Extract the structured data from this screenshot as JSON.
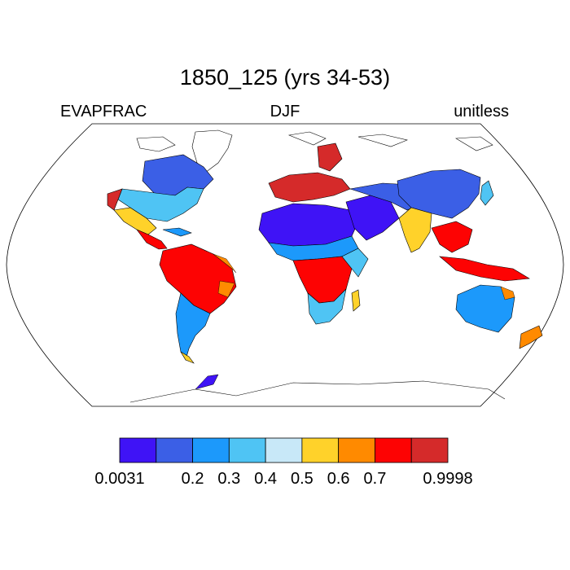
{
  "title": "1850_125 (yrs 34-53)",
  "variable": "EVAPFRAC",
  "season": "DJF",
  "units": "unitless",
  "colorbar": {
    "colors": [
      "#3f13f6",
      "#3b5fe6",
      "#1c99fb",
      "#4fc4f4",
      "#c8e8f8",
      "#ffd22a",
      "#ff8a00",
      "#fd0303",
      "#d52a2a"
    ],
    "labels": [
      "0.0031",
      "0.2",
      "0.3",
      "0.4",
      "0.5",
      "0.6",
      "0.7",
      "0.9998"
    ]
  },
  "map": {
    "projection": "Robinson",
    "regions": [
      {
        "name": "north-america",
        "color": "#3b5fe6"
      },
      {
        "name": "usa-east",
        "color": "#4fc4f4"
      },
      {
        "name": "mexico",
        "color": "#ffd22a"
      },
      {
        "name": "central-america",
        "color": "#fd0303"
      },
      {
        "name": "amazon",
        "color": "#fd0303"
      },
      {
        "name": "south-america-south",
        "color": "#1c99fb"
      },
      {
        "name": "sahara",
        "color": "#3f13f6"
      },
      {
        "name": "sahel",
        "color": "#1c99fb"
      },
      {
        "name": "central-africa",
        "color": "#fd0303"
      },
      {
        "name": "southern-africa",
        "color": "#4fc4f4"
      },
      {
        "name": "europe",
        "color": "#d52a2a"
      },
      {
        "name": "middle-east",
        "color": "#3f13f6"
      },
      {
        "name": "central-asia",
        "color": "#3b5fe6"
      },
      {
        "name": "east-asia",
        "color": "#3b5fe6"
      },
      {
        "name": "india",
        "color": "#ffd22a"
      },
      {
        "name": "southeast-asia",
        "color": "#fd0303"
      },
      {
        "name": "australia",
        "color": "#1c99fb"
      },
      {
        "name": "new-zealand",
        "color": "#ff8a00"
      }
    ]
  }
}
